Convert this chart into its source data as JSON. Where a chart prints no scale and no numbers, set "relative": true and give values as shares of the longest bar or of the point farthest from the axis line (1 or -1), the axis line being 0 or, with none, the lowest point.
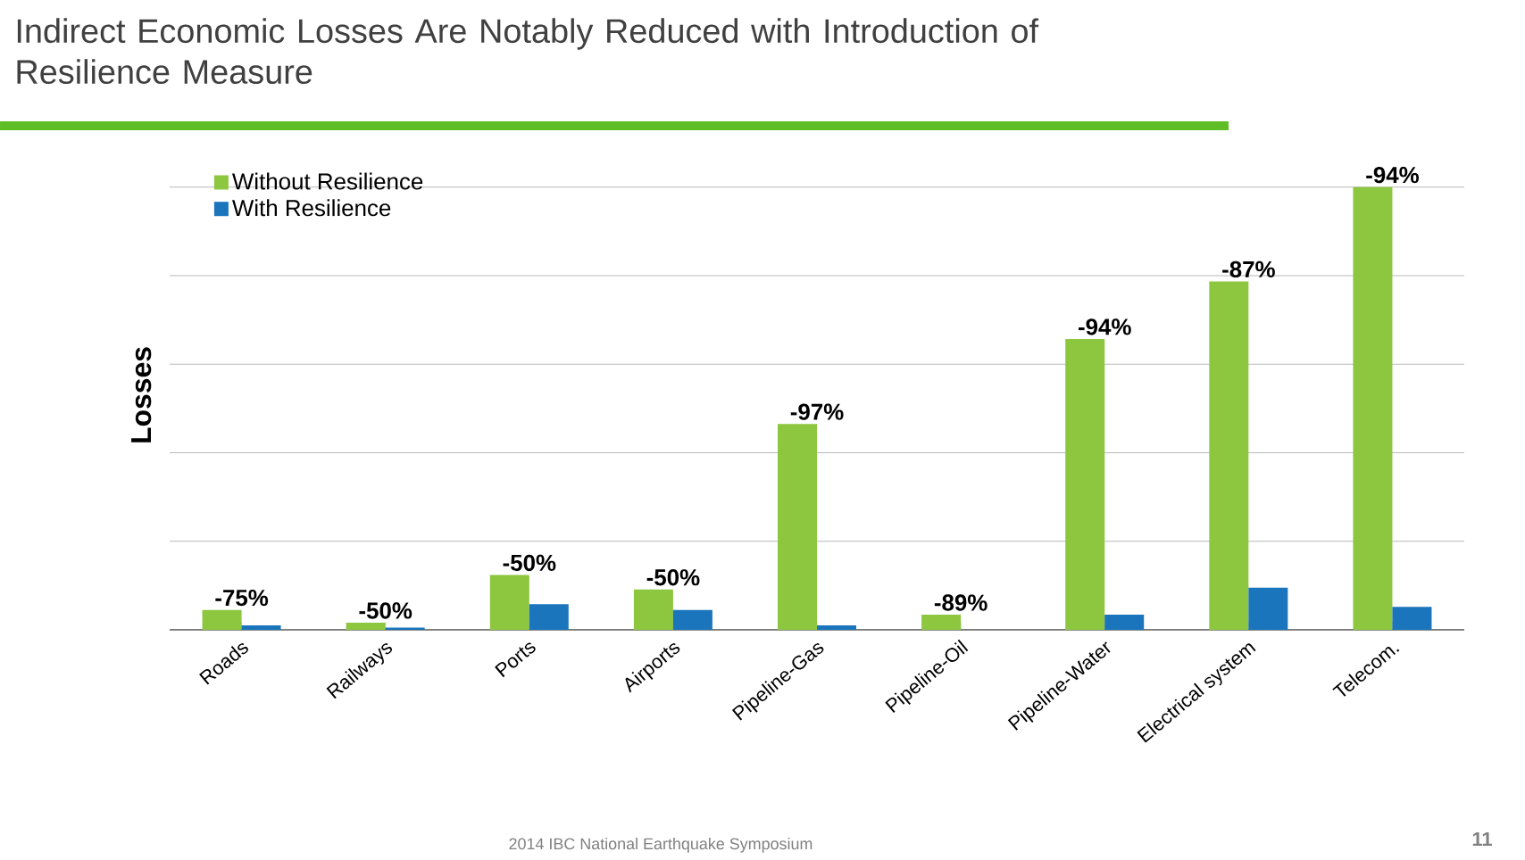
{
  "chart_data": {
    "type": "bar",
    "title": "Indirect Economic Losses Are Notably Reduced with Introduction of Resilience Measure",
    "ylabel": "Losses",
    "relative": true,
    "grid": "y",
    "legend": "top left",
    "categories": [
      "Roads",
      "Railways",
      "Ports",
      "Airports",
      "Pipeline-Gas",
      "Pipeline-Oil",
      "Pipeline-Water",
      "Electrical system",
      "Telecom."
    ],
    "series": [
      {
        "name": "Without Resilience",
        "color": "#8dc63f",
        "values": [
          0.045,
          0.016,
          0.124,
          0.091,
          0.465,
          0.034,
          0.657,
          0.787,
          1
        ]
      },
      {
        "name": "With Resilience",
        "color": "#1b75bc",
        "values": [
          0.01,
          0.005,
          0.058,
          0.045,
          0.01,
          null,
          0.034,
          0.095,
          0.052
        ]
      }
    ],
    "annotations": [
      {
        "text": "-75%",
        "x": "Roads",
        "y": 0.045
      },
      {
        "text": "-50%",
        "x": "Railways",
        "y": 0.016
      },
      {
        "text": "-50%",
        "x": "Ports",
        "y": 0.124
      },
      {
        "text": "-50%",
        "x": "Airports",
        "y": 0.091
      },
      {
        "text": "-97%",
        "x": "Pipeline-Gas",
        "y": 0.465
      },
      {
        "text": "-89%",
        "x": "Pipeline-Oil",
        "y": 0.034
      },
      {
        "text": "-94%",
        "x": "Pipeline-Water",
        "y": 0.657
      },
      {
        "text": "-87%",
        "x": "Electrical system",
        "y": 0.787
      },
      {
        "text": "-94%",
        "x": "Telecom.",
        "y": 1
      },
      "2014 IBC National Earthquake Symposium",
      "11"
    ]
  }
}
